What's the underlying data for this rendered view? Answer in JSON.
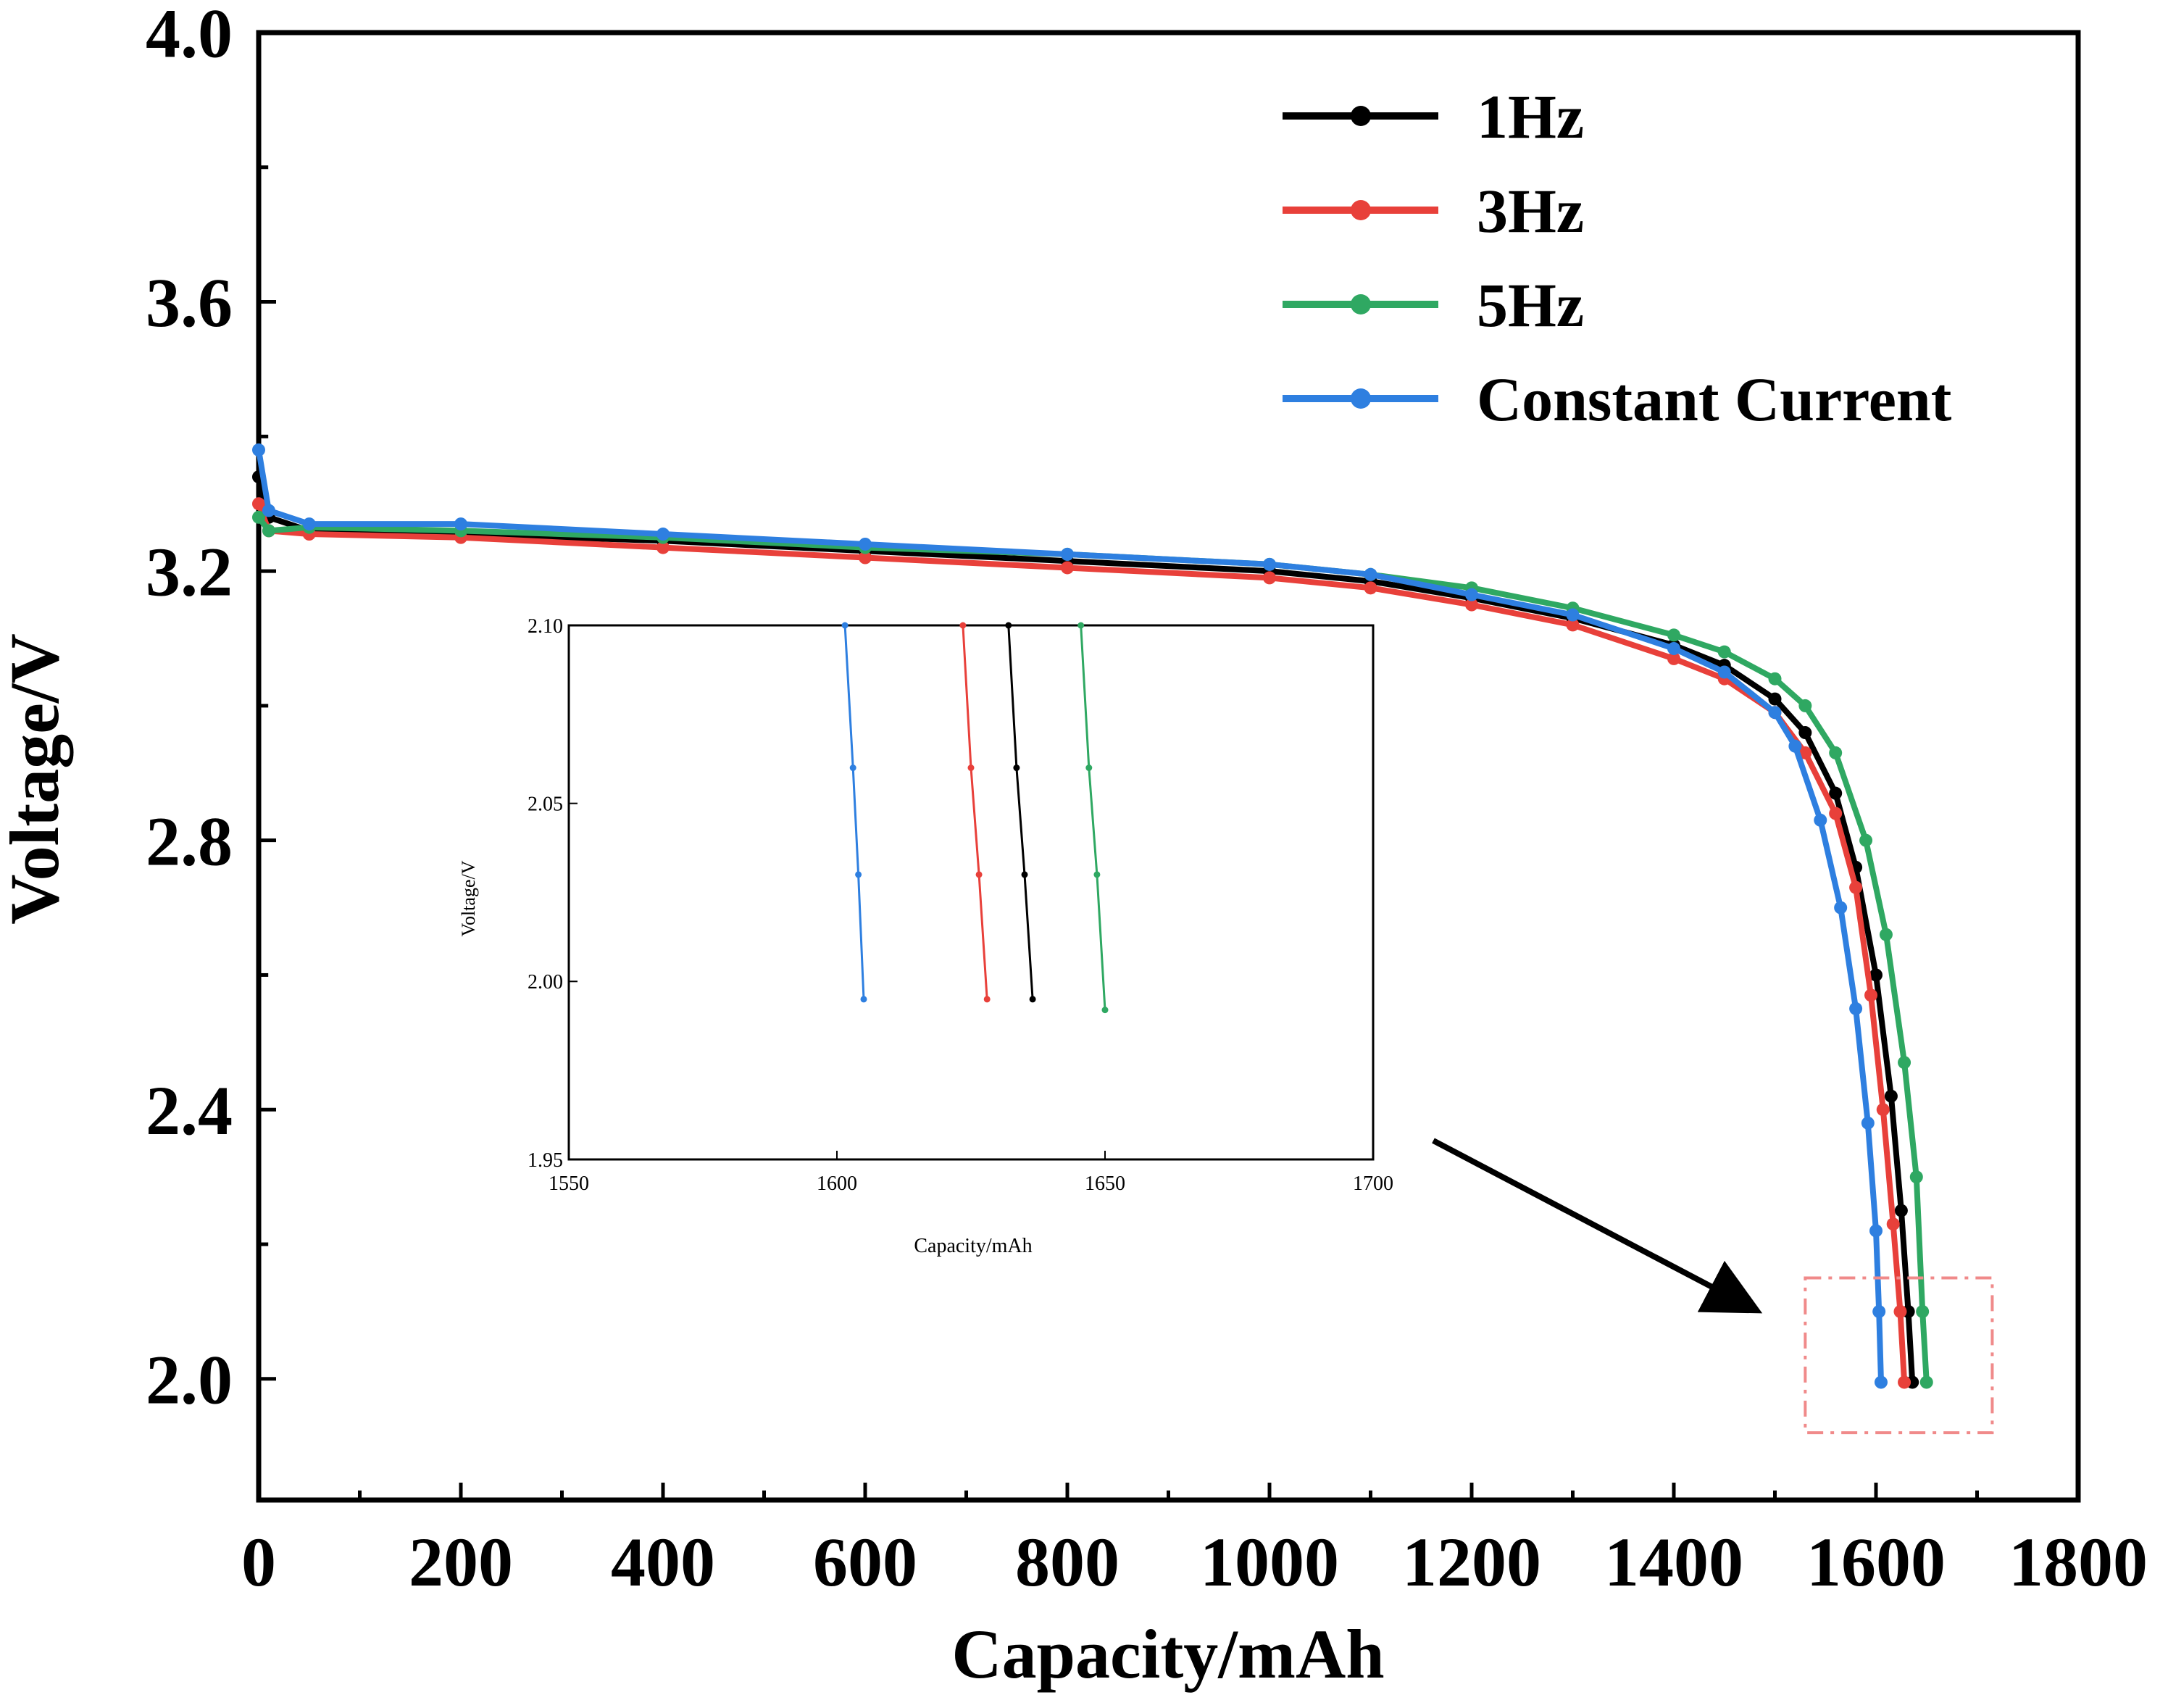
{
  "chart_data": [
    {
      "type": "line",
      "xlabel": "Capacity/mAh",
      "ylabel": "Voltage/V",
      "xlim": [
        0,
        1800
      ],
      "ylim": [
        1.82,
        4.0
      ],
      "x_ticks": [
        "0",
        "200",
        "400",
        "600",
        "800",
        "1000",
        "1200",
        "1400",
        "1600",
        "1800"
      ],
      "y_ticks": [
        "2.0",
        "2.4",
        "2.8",
        "3.2",
        "3.6",
        "4.0"
      ],
      "legend_position": "top-right",
      "series": [
        {
          "name": "1Hz",
          "color": "#000000",
          "points": [
            [
              0,
              3.34
            ],
            [
              10,
              3.28
            ],
            [
              50,
              3.26
            ],
            [
              200,
              3.255
            ],
            [
              400,
              3.245
            ],
            [
              600,
              3.23
            ],
            [
              800,
              3.215
            ],
            [
              1000,
              3.2
            ],
            [
              1100,
              3.185
            ],
            [
              1200,
              3.16
            ],
            [
              1300,
              3.13
            ],
            [
              1400,
              3.09
            ],
            [
              1450,
              3.06
            ],
            [
              1500,
              3.01
            ],
            [
              1530,
              2.96
            ],
            [
              1560,
              2.87
            ],
            [
              1580,
              2.76
            ],
            [
              1600,
              2.6
            ],
            [
              1615,
              2.42
            ],
            [
              1625,
              2.25
            ],
            [
              1632,
              2.1
            ],
            [
              1636,
              1.995
            ]
          ]
        },
        {
          "name": "3Hz",
          "color": "#e8403a",
          "points": [
            [
              0,
              3.3
            ],
            [
              10,
              3.26
            ],
            [
              50,
              3.255
            ],
            [
              200,
              3.25
            ],
            [
              400,
              3.235
            ],
            [
              600,
              3.22
            ],
            [
              800,
              3.205
            ],
            [
              1000,
              3.19
            ],
            [
              1100,
              3.175
            ],
            [
              1200,
              3.15
            ],
            [
              1300,
              3.12
            ],
            [
              1400,
              3.07
            ],
            [
              1450,
              3.04
            ],
            [
              1500,
              2.99
            ],
            [
              1530,
              2.93
            ],
            [
              1560,
              2.84
            ],
            [
              1580,
              2.73
            ],
            [
              1595,
              2.57
            ],
            [
              1607,
              2.4
            ],
            [
              1617,
              2.23
            ],
            [
              1624,
              2.1
            ],
            [
              1628,
              1.995
            ]
          ]
        },
        {
          "name": "5Hz",
          "color": "#2fa862",
          "points": [
            [
              0,
              3.28
            ],
            [
              10,
              3.26
            ],
            [
              50,
              3.265
            ],
            [
              200,
              3.26
            ],
            [
              400,
              3.25
            ],
            [
              600,
              3.235
            ],
            [
              800,
              3.225
            ],
            [
              1000,
              3.21
            ],
            [
              1100,
              3.195
            ],
            [
              1200,
              3.175
            ],
            [
              1300,
              3.145
            ],
            [
              1400,
              3.105
            ],
            [
              1450,
              3.08
            ],
            [
              1500,
              3.04
            ],
            [
              1530,
              3.0
            ],
            [
              1560,
              2.93
            ],
            [
              1590,
              2.8
            ],
            [
              1610,
              2.66
            ],
            [
              1628,
              2.47
            ],
            [
              1640,
              2.3
            ],
            [
              1646,
              2.1
            ],
            [
              1650,
              1.995
            ]
          ]
        },
        {
          "name": "Constant Current",
          "color": "#2e7fe0",
          "points": [
            [
              0,
              3.38
            ],
            [
              10,
              3.29
            ],
            [
              50,
              3.27
            ],
            [
              200,
              3.27
            ],
            [
              400,
              3.255
            ],
            [
              600,
              3.24
            ],
            [
              800,
              3.225
            ],
            [
              1000,
              3.21
            ],
            [
              1100,
              3.195
            ],
            [
              1200,
              3.165
            ],
            [
              1300,
              3.135
            ],
            [
              1400,
              3.085
            ],
            [
              1450,
              3.05
            ],
            [
              1500,
              2.99
            ],
            [
              1520,
              2.94
            ],
            [
              1545,
              2.83
            ],
            [
              1565,
              2.7
            ],
            [
              1580,
              2.55
            ],
            [
              1592,
              2.38
            ],
            [
              1600,
              2.22
            ],
            [
              1603,
              2.1
            ],
            [
              1605,
              1.995
            ]
          ]
        }
      ],
      "annotations": [
        "highlight-box",
        "arrow"
      ]
    },
    {
      "type": "line",
      "xlabel": "Capacity/mAh",
      "ylabel": "Voltage/V",
      "xlim": [
        1550,
        1700
      ],
      "ylim": [
        1.95,
        2.1
      ],
      "x_ticks": [
        "1550",
        "1600",
        "1650",
        "1700"
      ],
      "y_ticks": [
        "1.95",
        "2.00",
        "2.05",
        "2.10"
      ],
      "series": [
        {
          "name": "Constant Current",
          "color": "#2e7fe0",
          "points": [
            [
              1601.5,
              2.1
            ],
            [
              1603,
              2.06
            ],
            [
              1604,
              2.03
            ],
            [
              1605,
              1.995
            ]
          ]
        },
        {
          "name": "3Hz",
          "color": "#e8403a",
          "points": [
            [
              1623.5,
              2.1
            ],
            [
              1625,
              2.06
            ],
            [
              1626.5,
              2.03
            ],
            [
              1628,
              1.995
            ]
          ]
        },
        {
          "name": "1Hz",
          "color": "#000000",
          "points": [
            [
              1632,
              2.1
            ],
            [
              1633.5,
              2.06
            ],
            [
              1635,
              2.03
            ],
            [
              1636.5,
              1.995
            ]
          ]
        },
        {
          "name": "5Hz",
          "color": "#2fa862",
          "points": [
            [
              1645.5,
              2.1
            ],
            [
              1647,
              2.06
            ],
            [
              1648.5,
              2.03
            ],
            [
              1650,
              1.992
            ]
          ]
        }
      ]
    }
  ]
}
